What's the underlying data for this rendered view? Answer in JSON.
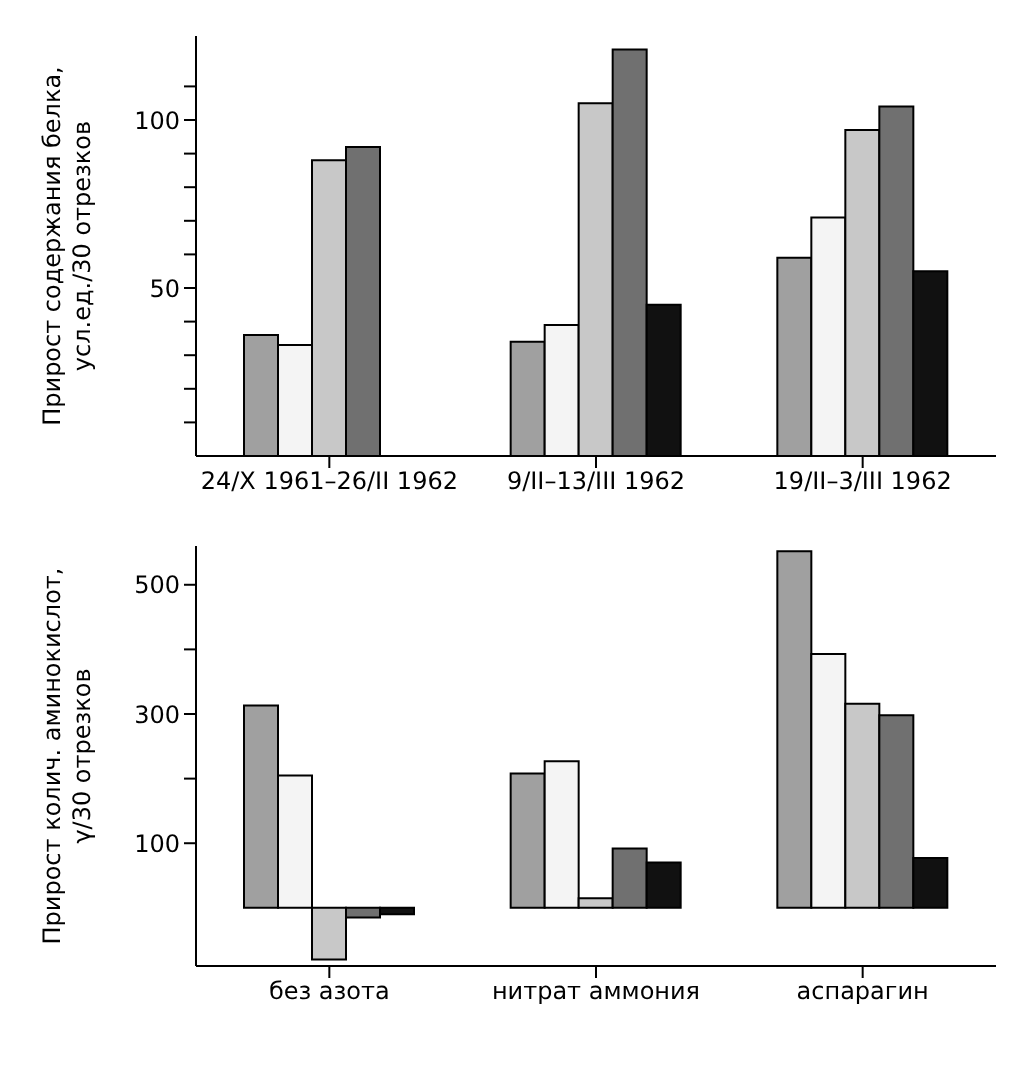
{
  "chart_data": [
    {
      "type": "bar",
      "ylabel": "Прирост содержания белка, усл.ед./30 отрезков",
      "categories": [
        "24/X 1961–26/II 1962",
        "9/II–13/III 1962",
        "19/II–3/III 1962"
      ],
      "series": [
        {
          "color": "#a0a0a0",
          "values": [
            36,
            34,
            59
          ]
        },
        {
          "color": "#f4f4f4",
          "values": [
            33,
            39,
            71
          ]
        },
        {
          "color": "#c8c8c8",
          "values": [
            88,
            105,
            97
          ]
        },
        {
          "color": "#707070",
          "values": [
            92,
            121,
            104
          ]
        },
        {
          "color": "#111111",
          "values": [
            null,
            45,
            55
          ]
        }
      ],
      "ylim": [
        0,
        125
      ],
      "yticks": [
        {
          "value": 10,
          "label": null
        },
        {
          "value": 20,
          "label": null
        },
        {
          "value": 30,
          "label": null
        },
        {
          "value": 40,
          "label": null
        },
        50,
        {
          "value": 60,
          "label": null
        },
        {
          "value": 70,
          "label": null
        },
        {
          "value": 80,
          "label": null
        },
        {
          "value": 90,
          "label": null
        },
        100,
        {
          "value": 110,
          "label": null
        }
      ],
      "grid": false
    },
    {
      "type": "bar",
      "ylabel": "Прирост колич. аминокислот, γ/30 отрезков",
      "categories": [
        "без азота",
        "нитрат аммония",
        "аспарагин"
      ],
      "series": [
        {
          "color": "#a0a0a0",
          "values": [
            313,
            208,
            552
          ]
        },
        {
          "color": "#f4f4f4",
          "values": [
            205,
            227,
            393
          ]
        },
        {
          "color": "#c8c8c8",
          "values": [
            -80,
            15,
            316
          ]
        },
        {
          "color": "#707070",
          "values": [
            -15,
            92,
            298
          ]
        },
        {
          "color": "#111111",
          "values": [
            -10,
            70,
            77
          ]
        }
      ],
      "ylim": [
        -90,
        560
      ],
      "yticks": [
        100,
        {
          "value": 200,
          "label": null
        },
        300,
        {
          "value": 400,
          "label": null
        },
        500
      ],
      "grid": false
    }
  ]
}
